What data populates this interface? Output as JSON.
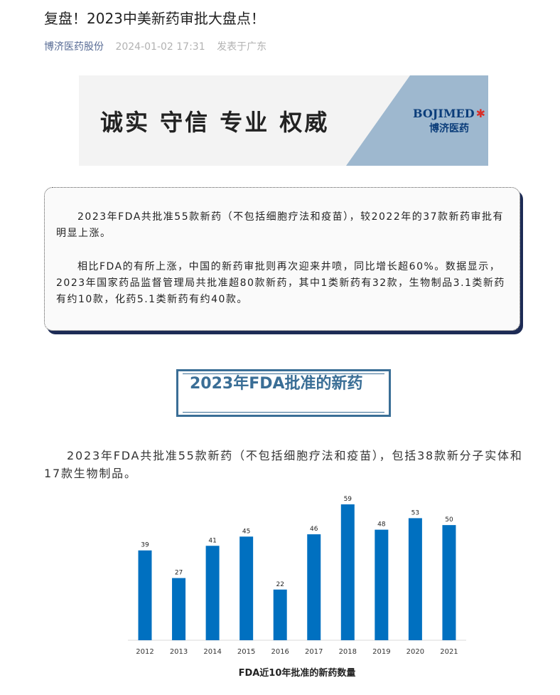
{
  "article": {
    "title": "复盘！2023中美新药审批大盘点！",
    "author": "博济医药股份",
    "date": "2024-01-02 17:31",
    "location": "发表于广东"
  },
  "banner": {
    "slogan": "诚实 守信 专业 权威",
    "logo_en": "BOJIMED",
    "logo_cn": "博济医药"
  },
  "summary": {
    "p1": "2023年FDA共批准55款新药（不包括细胞疗法和疫苗），较2022年的37款新药审批有明显上涨。",
    "p2": "相比FDA的有所上涨，中国的新药审批则再次迎来井喷，同比增长超60%。数据显示，2023年国家药品监督管理局共批准超80款新药，其中1类新药有32款，生物制品3.1类新药有约10款，化药5.1类新药有约40款。"
  },
  "section": {
    "heading": "2023年FDA批准的新药",
    "paragraph": "2023年FDA共批准55款新药（不包括细胞疗法和疫苗），包括38款新分子实体和17款生物制品。"
  },
  "chart_data": {
    "type": "bar",
    "title": "FDA近10年批准的新药数量",
    "categories": [
      "2012",
      "2013",
      "2014",
      "2015",
      "2016",
      "2017",
      "2018",
      "2019",
      "2020",
      "2021"
    ],
    "values": [
      39,
      27,
      41,
      45,
      22,
      46,
      59,
      48,
      53,
      50
    ],
    "ylim": [
      0,
      60
    ],
    "grid": false,
    "color": "#0070c0"
  }
}
